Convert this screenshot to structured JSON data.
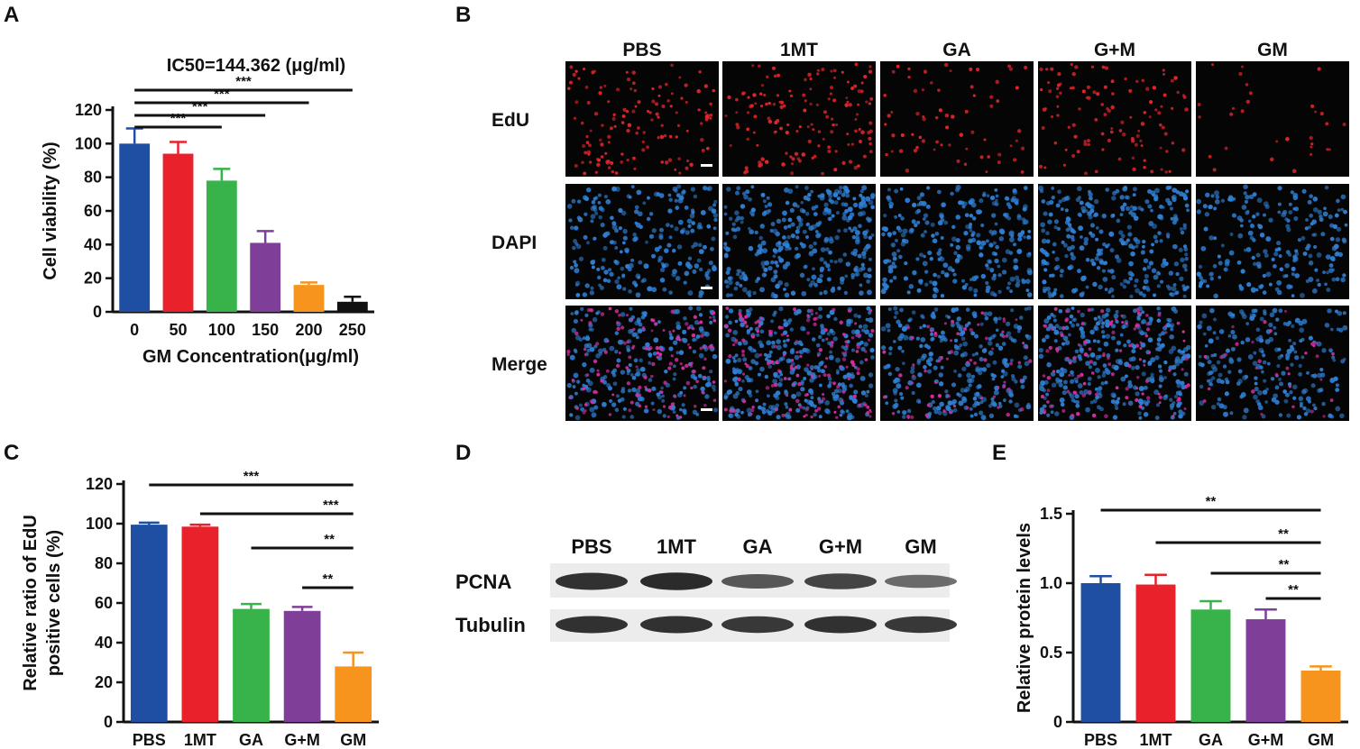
{
  "panel_letters": [
    "A",
    "B",
    "C",
    "D",
    "E"
  ],
  "colors": {
    "bar": [
      "#1f4fa3",
      "#e8212b",
      "#37b34a",
      "#7f3f98",
      "#f7941d",
      "#111111"
    ],
    "edu": "#e3262b",
    "dapi": "#2f7fd4",
    "merge": "#d62fa0",
    "microscopy_bg": "#050505"
  },
  "chart_data": [
    {
      "panel": "A",
      "type": "bar",
      "title": "IC50=144.362 (μg/ml)",
      "xlabel": "GM Concentration(μg/ml)",
      "ylabel": "Cell viability (%)",
      "categories": [
        "0",
        "50",
        "100",
        "150",
        "200",
        "250"
      ],
      "values": [
        100,
        94,
        78,
        41,
        16,
        6
      ],
      "errors": [
        9,
        7,
        7,
        7,
        1.5,
        3
      ],
      "ylim": [
        0,
        120
      ],
      "yticks": [
        "0",
        "20",
        "40",
        "60",
        "80",
        "100",
        "120"
      ],
      "significance": [
        {
          "from": 0,
          "to": 5,
          "label": "***"
        },
        {
          "from": 0,
          "to": 4,
          "label": "***"
        },
        {
          "from": 0,
          "to": 3,
          "label": "***"
        },
        {
          "from": 0,
          "to": 2,
          "label": "***"
        }
      ]
    },
    {
      "panel": "C",
      "type": "bar",
      "ylabel": [
        "Relative ratio of EdU",
        "positive cells (%)"
      ],
      "categories": [
        "PBS",
        "1MT",
        "GA",
        "G+M",
        "GM"
      ],
      "values": [
        99.5,
        98.5,
        57,
        56,
        28
      ],
      "errors": [
        1,
        1,
        2.5,
        2,
        7
      ],
      "ylim": [
        0,
        120
      ],
      "yticks": [
        "0",
        "20",
        "40",
        "60",
        "80",
        "100",
        "120"
      ],
      "significance": [
        {
          "from": 0,
          "to": 4,
          "label": "***"
        },
        {
          "from": 1,
          "to": 4,
          "label": "***"
        },
        {
          "from": 2,
          "to": 4,
          "label": "**"
        },
        {
          "from": 3,
          "to": 4,
          "label": "**"
        }
      ]
    },
    {
      "panel": "E",
      "type": "bar",
      "ylabel": "Relative protein levels",
      "categories": [
        "PBS",
        "1MT",
        "GA",
        "G+M",
        "GM"
      ],
      "values": [
        1.0,
        0.99,
        0.81,
        0.74,
        0.37
      ],
      "errors": [
        0.05,
        0.07,
        0.06,
        0.07,
        0.03
      ],
      "ylim": [
        0,
        1.5
      ],
      "yticks": [
        "0",
        "0.5",
        "1.0",
        "1.5"
      ],
      "significance": [
        {
          "from": 0,
          "to": 4,
          "label": "**"
        },
        {
          "from": 1,
          "to": 4,
          "label": "**"
        },
        {
          "from": 2,
          "to": 4,
          "label": "**"
        },
        {
          "from": 3,
          "to": 4,
          "label": "**"
        }
      ]
    }
  ],
  "microscopy": {
    "columns": [
      "PBS",
      "1MT",
      "GA",
      "G+M",
      "GM"
    ],
    "rows": [
      "EdU",
      "DAPI",
      "Merge"
    ],
    "edu_density": [
      0.9,
      1.0,
      0.45,
      0.75,
      0.2
    ],
    "dapi_density": [
      0.7,
      1.0,
      0.85,
      0.95,
      0.65
    ]
  },
  "western_blot": {
    "lanes": [
      "PBS",
      "1MT",
      "GA",
      "G+M",
      "GM"
    ],
    "bands": [
      {
        "name": "PCNA",
        "intensity": [
          0.9,
          0.95,
          0.6,
          0.75,
          0.45
        ]
      },
      {
        "name": "Tubulin",
        "intensity": [
          0.9,
          0.9,
          0.85,
          0.9,
          0.85
        ]
      }
    ]
  }
}
